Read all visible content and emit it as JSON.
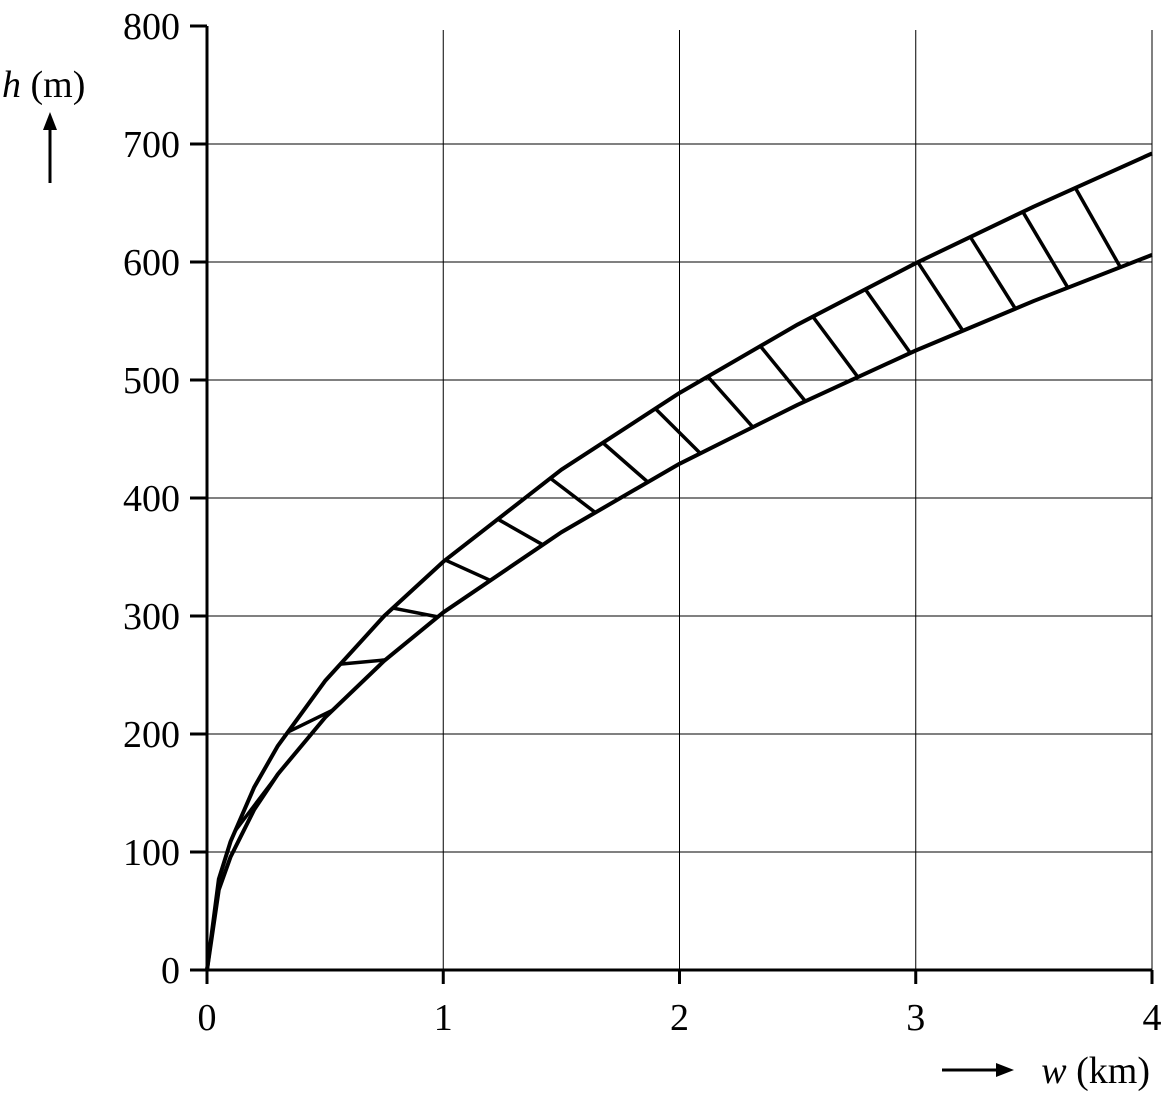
{
  "chart_data": {
    "type": "line",
    "ylabel_var": "h",
    "ylabel_unit": "(m)",
    "xlabel_var": "w",
    "xlabel_unit": "(km)",
    "x": [
      0,
      0.05,
      0.1,
      0.2,
      0.3,
      0.5,
      0.75,
      1,
      1.5,
      2,
      2.5,
      3,
      3.5,
      4
    ],
    "series": [
      {
        "color": "#000000",
        "values": [
          0,
          77,
          109,
          155,
          190,
          245,
          300,
          346,
          424,
          489,
          547,
          599,
          647,
          692
        ]
      },
      {
        "color": "#000000",
        "values": [
          0,
          68,
          96,
          136,
          166,
          214,
          262,
          303,
          371,
          429,
          479,
          525,
          567,
          606
        ]
      }
    ],
    "hatched_band": true,
    "xlim": [
      0,
      4
    ],
    "xticks": [
      0,
      1,
      2,
      3,
      4
    ],
    "ylim": [
      0,
      800
    ],
    "yticks": [
      0,
      100,
      200,
      300,
      400,
      500,
      600,
      700,
      800
    ],
    "grid": true
  }
}
